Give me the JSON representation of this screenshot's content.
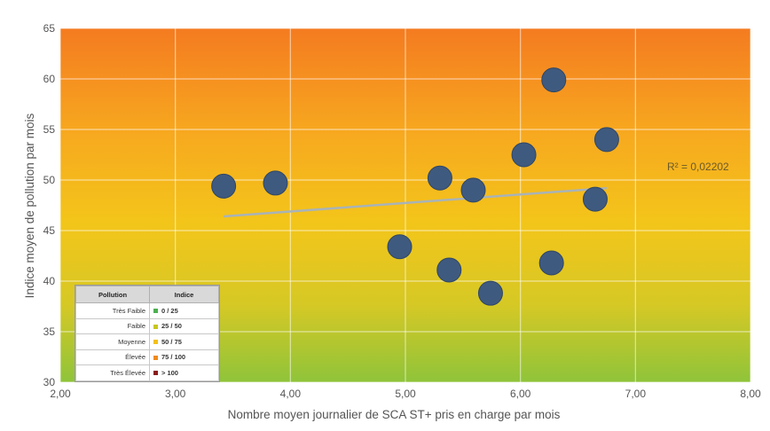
{
  "chart_data": {
    "type": "scatter",
    "title": "",
    "xlabel": "Nombre moyen journalier de SCA ST+ pris en charge par mois",
    "ylabel": "Indice moyen de pollution par mois",
    "xlim": [
      2.0,
      8.0
    ],
    "ylim": [
      30,
      65
    ],
    "x_ticks": [
      "2,00",
      "3,00",
      "4,00",
      "5,00",
      "6,00",
      "7,00",
      "8,00"
    ],
    "y_ticks": [
      "30",
      "35",
      "40",
      "45",
      "50",
      "55",
      "60",
      "65"
    ],
    "grid": true,
    "background_gradient": [
      "#f47b20",
      "#f7a91f",
      "#f3c51a",
      "#d6c825",
      "#8fc43a"
    ],
    "marker_color": "#3f5a7f",
    "trendline_color": "#a9b3b7",
    "points": [
      {
        "x": 3.42,
        "y": 49.4
      },
      {
        "x": 3.87,
        "y": 49.7
      },
      {
        "x": 4.95,
        "y": 43.4
      },
      {
        "x": 5.3,
        "y": 50.2
      },
      {
        "x": 5.38,
        "y": 41.1
      },
      {
        "x": 5.59,
        "y": 49.0
      },
      {
        "x": 5.74,
        "y": 38.8
      },
      {
        "x": 6.03,
        "y": 52.5
      },
      {
        "x": 6.27,
        "y": 41.8
      },
      {
        "x": 6.29,
        "y": 59.9
      },
      {
        "x": 6.65,
        "y": 48.1
      },
      {
        "x": 6.75,
        "y": 54.0
      }
    ],
    "trendline": {
      "x": [
        3.42,
        6.75
      ],
      "y": [
        46.4,
        49.2
      ]
    },
    "annotation": "R² = 0,02202",
    "legend": {
      "placement": "bottom-left",
      "headers": [
        "Pollution",
        "Indice"
      ],
      "rows": [
        {
          "label": "Très Faible",
          "value": "0 / 25",
          "color": "#4caf50"
        },
        {
          "label": "Faible",
          "value": "25 / 50",
          "color": "#c6c61e"
        },
        {
          "label": "Moyenne",
          "value": "50 / 75",
          "color": "#f2c018"
        },
        {
          "label": "Élevée",
          "value": "75 / 100",
          "color": "#f08a1c"
        },
        {
          "label": "Très Élevée",
          "value": "> 100",
          "color": "#8b1a1a"
        }
      ]
    }
  }
}
